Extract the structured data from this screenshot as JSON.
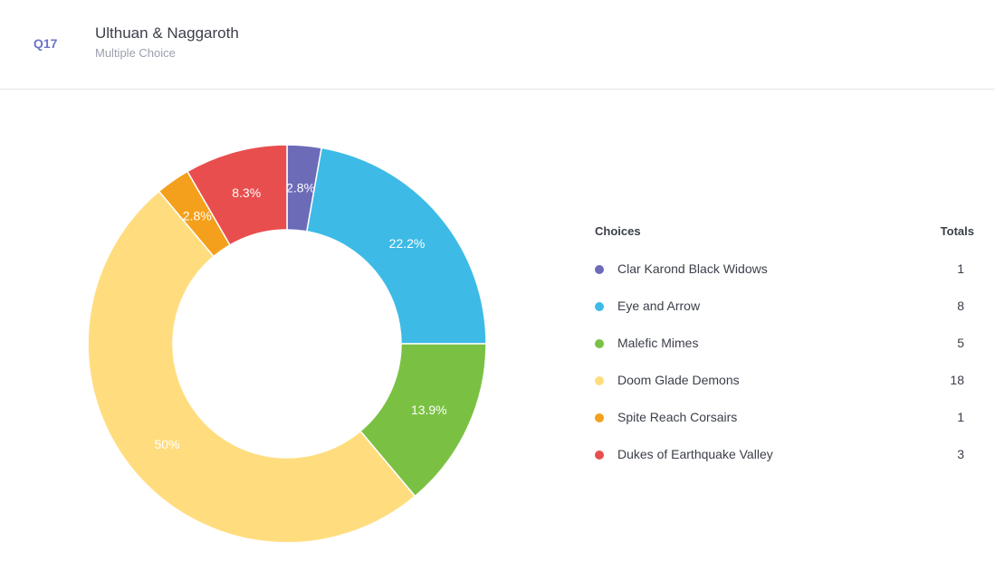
{
  "header": {
    "question_number": "Q17",
    "title": "Ulthuan & Naggaroth",
    "type": "Multiple Choice"
  },
  "table": {
    "choices_header": "Choices",
    "totals_header": "Totals"
  },
  "chart_data": {
    "type": "pie",
    "variant": "donut",
    "categories": [
      "Clar Karond Black Widows",
      "Eye and Arrow",
      "Malefic Mimes",
      "Doom Glade Demons",
      "Spite Reach Corsairs",
      "Dukes of Earthquake Valley"
    ],
    "values": [
      1,
      8,
      5,
      18,
      1,
      3
    ],
    "labels": [
      "2.8%",
      "22.2%",
      "13.9%",
      "50%",
      "2.8%",
      "8.3%"
    ],
    "colors": [
      "#6b6bb8",
      "#3dbbe6",
      "#7ac143",
      "#ffdd7f",
      "#f5a01c",
      "#e84e4e"
    ],
    "legend_position": "right"
  }
}
